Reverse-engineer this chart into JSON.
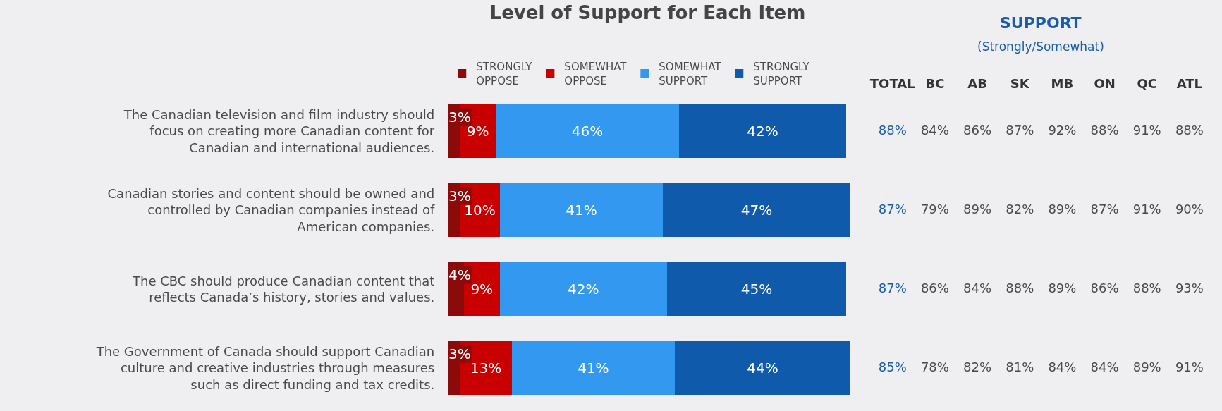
{
  "chart_data": [
    {
      "type": "bar",
      "orientation": "horizontal",
      "stacked": true,
      "title": "Level of Support for Each Item",
      "legend": "top",
      "categories": [
        "The Canadian television and film industry should focus on creating more Canadian content for Canadian and international audiences.",
        "Canadian stories and content should be owned and controlled by Canadian companies instead of American companies.",
        "The CBC should produce Canadian content that reflects Canada’s history, stories and values.",
        "The Government of Canada should support Canadian culture and creative industries through measures such as direct funding and tax credits."
      ],
      "series": [
        {
          "name": "STRONGLY OPPOSE",
          "color": "#8b0a0a",
          "values": [
            3,
            3,
            4,
            3
          ],
          "value_labels": [
            "3%",
            "3%",
            "4%",
            "3%"
          ]
        },
        {
          "name": "SOMEWHAT OPPOSE",
          "color": "#c80000",
          "values": [
            9,
            10,
            9,
            13
          ],
          "value_labels": [
            "9%",
            "10%",
            "9%",
            "13%"
          ]
        },
        {
          "name": "SOMEWHAT SUPPORT",
          "color": "#3399f0",
          "values": [
            46,
            41,
            42,
            41
          ],
          "value_labels": [
            "46%",
            "41%",
            "42%",
            "41%"
          ]
        },
        {
          "name": "STRONGLY SUPPORT",
          "color": "#0f5aaa",
          "values": [
            42,
            47,
            45,
            44
          ],
          "value_labels": [
            "42%",
            "47%",
            "45%",
            "44%"
          ]
        }
      ]
    },
    {
      "type": "other",
      "title": "SUPPORT",
      "subtitle": "(Strongly/Somewhat)",
      "categories": [
        "TOTAL",
        "BC",
        "AB",
        "SK",
        "MB",
        "ON",
        "QC",
        "ATL"
      ],
      "cell_labels": [
        [
          "88%",
          "84%",
          "86%",
          "87%",
          "92%",
          "88%",
          "91%",
          "88%"
        ],
        [
          "87%",
          "79%",
          "89%",
          "82%",
          "89%",
          "87%",
          "91%",
          "90%"
        ],
        [
          "87%",
          "86%",
          "84%",
          "88%",
          "89%",
          "86%",
          "88%",
          "93%"
        ],
        [
          "85%",
          "78%",
          "82%",
          "81%",
          "84%",
          "84%",
          "89%",
          "91%"
        ]
      ]
    }
  ]
}
